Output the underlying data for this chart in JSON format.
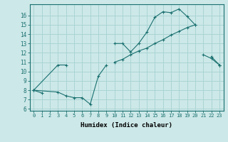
{
  "xlabel": "Humidex (Indice chaleur)",
  "bg_color": "#cde8e8",
  "line_color": "#1a7070",
  "grid_color": "#aad4d4",
  "xlim": [
    -0.5,
    23.5
  ],
  "ylim": [
    5.8,
    17.2
  ],
  "yticks": [
    6,
    7,
    8,
    9,
    10,
    11,
    12,
    13,
    14,
    15,
    16
  ],
  "xticks": [
    0,
    1,
    2,
    3,
    4,
    5,
    6,
    7,
    8,
    9,
    10,
    11,
    12,
    13,
    14,
    15,
    16,
    17,
    18,
    19,
    20,
    21,
    22,
    23
  ],
  "line_max": [
    [
      0,
      8.0
    ],
    [
      1,
      7.7
    ],
    [
      10,
      13.0
    ],
    [
      11,
      13.0
    ],
    [
      12,
      12.1
    ],
    [
      13,
      13.0
    ],
    [
      14,
      14.2
    ],
    [
      15,
      15.8
    ],
    [
      16,
      16.4
    ],
    [
      17,
      16.3
    ],
    [
      18,
      16.7
    ],
    [
      19,
      15.9
    ],
    [
      20,
      15.0
    ],
    [
      22,
      11.6
    ],
    [
      23,
      10.7
    ]
  ],
  "line_avg": [
    [
      0,
      8.0
    ],
    [
      3,
      10.7
    ],
    [
      4,
      10.7
    ],
    [
      10,
      11.0
    ],
    [
      11,
      11.3
    ],
    [
      12,
      11.8
    ],
    [
      13,
      12.2
    ],
    [
      14,
      12.5
    ],
    [
      15,
      13.0
    ],
    [
      16,
      13.4
    ],
    [
      17,
      13.9
    ],
    [
      18,
      14.3
    ],
    [
      19,
      14.7
    ],
    [
      20,
      15.0
    ],
    [
      23,
      10.7
    ]
  ],
  "line_min": [
    [
      0,
      8.0
    ],
    [
      3,
      7.8
    ],
    [
      4,
      7.4
    ],
    [
      5,
      7.2
    ],
    [
      6,
      7.2
    ],
    [
      7,
      6.5
    ],
    [
      8,
      9.5
    ],
    [
      9,
      10.7
    ],
    [
      21,
      11.8
    ],
    [
      22,
      11.4
    ],
    [
      23,
      10.7
    ]
  ],
  "line_max_segments": [
    [
      [
        0,
        8.0
      ],
      [
        1,
        7.7
      ]
    ],
    [
      [
        10,
        13.0
      ],
      [
        11,
        13.0
      ],
      [
        12,
        12.1
      ],
      [
        13,
        13.0
      ],
      [
        14,
        14.2
      ],
      [
        15,
        15.8
      ],
      [
        16,
        16.4
      ],
      [
        17,
        16.3
      ],
      [
        18,
        16.7
      ],
      [
        19,
        15.9
      ],
      [
        20,
        15.0
      ]
    ],
    [
      [
        22,
        11.6
      ],
      [
        23,
        10.7
      ]
    ]
  ],
  "line_avg_segments": [
    [
      [
        0,
        8.0
      ],
      [
        3,
        10.7
      ],
      [
        4,
        10.7
      ]
    ],
    [
      [
        10,
        11.0
      ],
      [
        11,
        11.3
      ],
      [
        12,
        11.8
      ],
      [
        13,
        12.2
      ],
      [
        14,
        12.5
      ],
      [
        15,
        13.0
      ],
      [
        16,
        13.4
      ],
      [
        17,
        13.9
      ],
      [
        18,
        14.3
      ],
      [
        19,
        14.7
      ],
      [
        20,
        15.0
      ]
    ],
    [
      [
        23,
        10.7
      ]
    ]
  ],
  "line_min_segments": [
    [
      [
        0,
        8.0
      ],
      [
        3,
        7.8
      ],
      [
        4,
        7.4
      ],
      [
        5,
        7.2
      ],
      [
        6,
        7.2
      ],
      [
        7,
        6.5
      ],
      [
        8,
        9.5
      ],
      [
        9,
        10.7
      ]
    ],
    [
      [
        21,
        11.8
      ],
      [
        22,
        11.4
      ],
      [
        23,
        10.7
      ]
    ]
  ]
}
